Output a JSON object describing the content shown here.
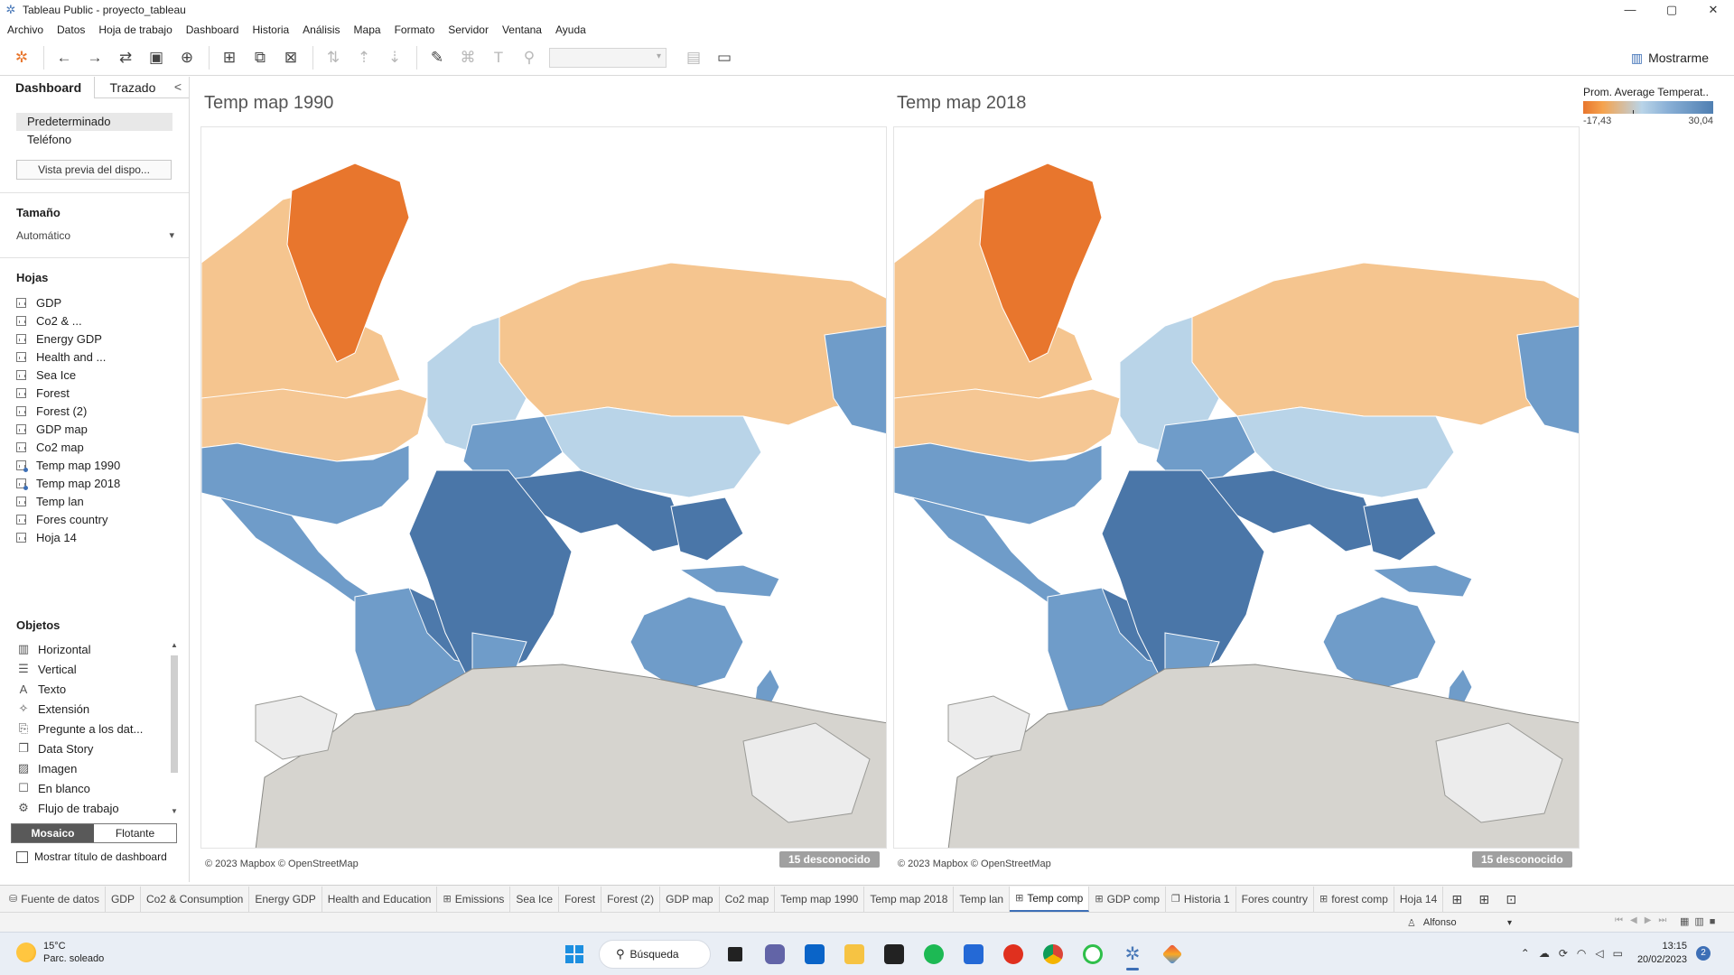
{
  "window": {
    "title": "Tableau Public - proyecto_tableau",
    "controls": {
      "minimize": "—",
      "maximize": "▢",
      "close": "✕"
    }
  },
  "menu": [
    "Archivo",
    "Datos",
    "Hoja de trabajo",
    "Dashboard",
    "Historia",
    "Análisis",
    "Mapa",
    "Formato",
    "Servidor",
    "Ventana",
    "Ayuda"
  ],
  "toolbar": {
    "show_me": "Mostrarme"
  },
  "sidebar": {
    "tabs": {
      "dashboard": "Dashboard",
      "layout": "Trazado",
      "collapse": "<"
    },
    "devices": [
      "Predeterminado",
      "Teléfono"
    ],
    "preview_button": "Vista previa del dispo...",
    "size_header": "Tamaño",
    "size_value": "Automático",
    "sheets_header": "Hojas",
    "sheets": [
      {
        "name": "GDP"
      },
      {
        "name": "Co2 & ..."
      },
      {
        "name": "Energy GDP"
      },
      {
        "name": "Health and ..."
      },
      {
        "name": "Sea Ice"
      },
      {
        "name": "Forest"
      },
      {
        "name": "Forest (2)"
      },
      {
        "name": "GDP map"
      },
      {
        "name": "Co2 map"
      },
      {
        "name": "Temp map 1990"
      },
      {
        "name": "Temp map 2018"
      },
      {
        "name": "Temp lan"
      },
      {
        "name": "Fores country"
      },
      {
        "name": "Hoja 14"
      }
    ],
    "objects_header": "Objetos",
    "objects": [
      {
        "label": "Horizontal",
        "icon": "horizontal-layout-icon",
        "glyph": "▥"
      },
      {
        "label": "Vertical",
        "icon": "vertical-layout-icon",
        "glyph": "☰"
      },
      {
        "label": "Texto",
        "icon": "text-icon",
        "glyph": "A"
      },
      {
        "label": "Extensión",
        "icon": "extension-icon",
        "glyph": "✧"
      },
      {
        "label": "Pregunte a los dat...",
        "icon": "ask-data-icon",
        "glyph": "⎘"
      },
      {
        "label": "Data Story",
        "icon": "data-story-icon",
        "glyph": "❐"
      },
      {
        "label": "Imagen",
        "icon": "image-icon",
        "glyph": "▨"
      },
      {
        "label": "En blanco",
        "icon": "blank-icon",
        "glyph": "☐"
      },
      {
        "label": "Flujo de trabajo",
        "icon": "workflow-icon",
        "glyph": "⚙"
      }
    ],
    "mode_tiled": "Mosaico",
    "mode_floating": "Flotante",
    "show_title": "Mostrar título de dashboard"
  },
  "dashboard": {
    "maps": [
      {
        "title": "Temp map 1990",
        "attribution": "© 2023 Mapbox © OpenStreetMap",
        "unknown": "15 desconocido"
      },
      {
        "title": "Temp map 2018",
        "attribution": "© 2023 Mapbox © OpenStreetMap",
        "unknown": "15 desconocido"
      }
    ],
    "legend": {
      "title": "Prom. Average Temperat..",
      "min": "-17,43",
      "max": "30,04"
    },
    "colors": {
      "cold": "#e8762d",
      "cool": "#f5c58f",
      "mild": "#b9d4e8",
      "warm": "#6f9cc9",
      "hot": "#4a76a8",
      "ocean": "#ffffff",
      "antarctica": "#d6d4cf"
    }
  },
  "sheet_tabs": [
    {
      "label": "Fuente de datos",
      "icon": "⛁"
    },
    {
      "label": "GDP",
      "icon": ""
    },
    {
      "label": "Co2 & Consumption",
      "icon": ""
    },
    {
      "label": "Energy GDP",
      "icon": ""
    },
    {
      "label": "Health and Education",
      "icon": ""
    },
    {
      "label": "Emissions",
      "icon": "⊞"
    },
    {
      "label": "Sea Ice",
      "icon": ""
    },
    {
      "label": "Forest",
      "icon": ""
    },
    {
      "label": "Forest (2)",
      "icon": ""
    },
    {
      "label": "GDP map",
      "icon": ""
    },
    {
      "label": "Co2 map",
      "icon": ""
    },
    {
      "label": "Temp map 1990",
      "icon": ""
    },
    {
      "label": "Temp map 2018",
      "icon": ""
    },
    {
      "label": "Temp lan",
      "icon": ""
    },
    {
      "label": "Temp comp",
      "icon": "⊞",
      "active": true
    },
    {
      "label": "GDP comp",
      "icon": "⊞"
    },
    {
      "label": "Historia 1",
      "icon": "❐"
    },
    {
      "label": "Fores country",
      "icon": ""
    },
    {
      "label": "forest comp",
      "icon": "⊞"
    },
    {
      "label": "Hoja 14",
      "icon": ""
    }
  ],
  "status": {
    "user": "Alfonso"
  },
  "taskbar": {
    "weather_temp": "15°C",
    "weather_desc": "Parc. soleado",
    "search": "Búsqueda",
    "time": "13:15",
    "date": "20/02/2023",
    "notifications": "2"
  }
}
